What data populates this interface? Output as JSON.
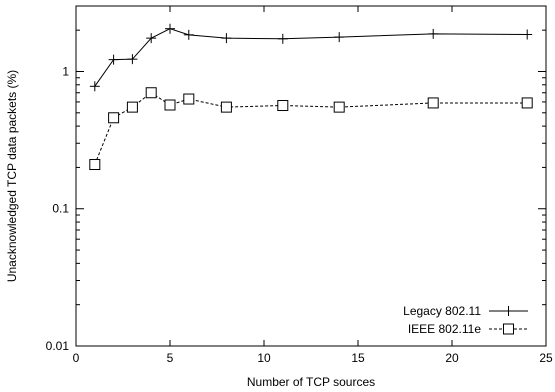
{
  "chart_data": {
    "type": "line",
    "title": "",
    "xlabel": "Number of TCP sources",
    "ylabel": "Unacknowledged TCP data packets (%)",
    "xlim": [
      0,
      25
    ],
    "ylim": [
      0.01,
      3
    ],
    "yscale": "log",
    "grid": false,
    "legend_position": "bottom-right",
    "x_ticks": [
      0,
      5,
      10,
      15,
      20,
      25
    ],
    "x_tick_labels": [
      "0",
      "5",
      "10",
      "15",
      "20",
      "25"
    ],
    "y_ticks": [
      0.01,
      0.1,
      1
    ],
    "y_tick_labels": [
      "0.01",
      "0.1",
      "1"
    ],
    "series": [
      {
        "name": "Legacy 802.11",
        "marker": "plus",
        "line_style": "solid",
        "color": "#000000",
        "x": [
          1,
          2,
          3,
          4,
          5,
          6,
          8,
          11,
          14,
          19,
          24
        ],
        "y": [
          0.78,
          1.22,
          1.23,
          1.75,
          2.05,
          1.85,
          1.75,
          1.73,
          1.78,
          1.88,
          1.86
        ]
      },
      {
        "name": "IEEE 802.11e",
        "marker": "square",
        "line_style": "dashed",
        "color": "#000000",
        "x": [
          1,
          2,
          3,
          4,
          5,
          6,
          8,
          11,
          14,
          19,
          24
        ],
        "y": [
          0.21,
          0.46,
          0.55,
          0.7,
          0.57,
          0.63,
          0.55,
          0.565,
          0.55,
          0.59,
          0.59
        ]
      }
    ]
  }
}
